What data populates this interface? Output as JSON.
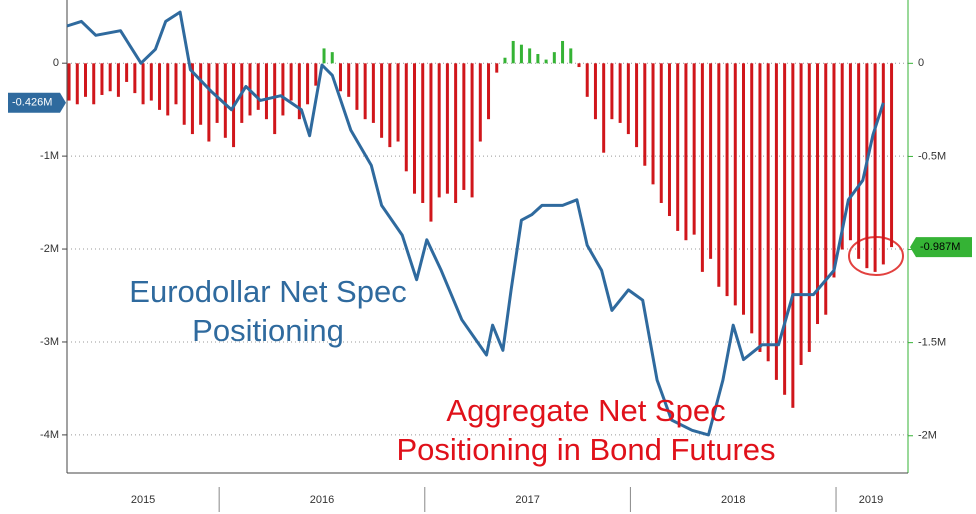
{
  "chart_data": {
    "type": "bar-line",
    "xlim": [
      2015.26,
      2019.35
    ],
    "xticks": [
      {
        "value": 2015.63,
        "label": "2015"
      },
      {
        "value": 2016.5,
        "label": "2016"
      },
      {
        "value": 2017.5,
        "label": "2017"
      },
      {
        "value": 2018.5,
        "label": "2018"
      },
      {
        "value": 2019.17,
        "label": "2019"
      }
    ],
    "ylim": [
      -4.41,
      0.68
    ],
    "yticks": [
      0,
      {
        "value": -1,
        "label": "-1M"
      },
      {
        "value": -2,
        "label": "-2M"
      },
      {
        "value": -3,
        "label": "-3M"
      },
      {
        "value": -4,
        "label": "-4M"
      }
    ],
    "y2lim": [
      -2.2,
      0.34
    ],
    "y2ticks": [
      0,
      {
        "value": -0.5,
        "label": "-0.5M"
      },
      {
        "value": -1,
        "label": "-1M"
      },
      {
        "value": -1.5,
        "label": "-1.5M"
      },
      {
        "value": -2,
        "label": "-2M"
      }
    ],
    "grid": true,
    "series": [
      {
        "name": "Eurodollar Net Spec Positioning",
        "type": "line",
        "axis": "y",
        "color": "#2f6a9e",
        "x": [
          2015.26,
          2015.33,
          2015.4,
          2015.52,
          2015.62,
          2015.69,
          2015.74,
          2015.81,
          2015.86,
          2015.96,
          2016.06,
          2016.13,
          2016.2,
          2016.3,
          2016.4,
          2016.44,
          2016.5,
          2016.55,
          2016.64,
          2016.74,
          2016.79,
          2016.89,
          2016.96,
          2017.01,
          2017.08,
          2017.18,
          2017.3,
          2017.33,
          2017.38,
          2017.42,
          2017.47,
          2017.52,
          2017.57,
          2017.67,
          2017.74,
          2017.79,
          2017.86,
          2017.91,
          2017.99,
          2018.06,
          2018.13,
          2018.2,
          2018.3,
          2018.38,
          2018.45,
          2018.5,
          2018.55,
          2018.64,
          2018.72,
          2018.79,
          2018.89,
          2018.99,
          2019.06,
          2019.13,
          2019.18,
          2019.23
        ],
        "values": [
          0.4,
          0.45,
          0.3,
          0.35,
          0,
          0.15,
          0.45,
          0.55,
          -0.07,
          -0.3,
          -0.5,
          -0.25,
          -0.4,
          -0.35,
          -0.5,
          -0.78,
          -0.02,
          -0.13,
          -0.72,
          -1.1,
          -1.53,
          -1.85,
          -2.33,
          -1.9,
          -2.23,
          -2.76,
          -3.14,
          -2.82,
          -3.09,
          -2.44,
          -1.69,
          -1.63,
          -1.53,
          -1.53,
          -1.47,
          -1.96,
          -2.23,
          -2.66,
          -2.44,
          -2.55,
          -3.41,
          -3.84,
          -3.95,
          -4.0,
          -3.41,
          -2.82,
          -3.19,
          -3.03,
          -3.03,
          -2.49,
          -2.49,
          -2.23,
          -1.47,
          -1.26,
          -0.77,
          -0.426
        ]
      },
      {
        "name": "Aggregate Net Spec Positioning in Bond Futures",
        "type": "bar",
        "axis": "y2",
        "color": "#d0161b",
        "positive_color": "#35b335",
        "x": [
          2015.27,
          2015.31,
          2015.35,
          2015.39,
          2015.43,
          2015.47,
          2015.51,
          2015.55,
          2015.59,
          2015.63,
          2015.67,
          2015.71,
          2015.75,
          2015.79,
          2015.83,
          2015.87,
          2015.91,
          2015.95,
          2015.99,
          2016.03,
          2016.07,
          2016.11,
          2016.15,
          2016.19,
          2016.23,
          2016.27,
          2016.31,
          2016.35,
          2016.39,
          2016.43,
          2016.47,
          2016.51,
          2016.55,
          2016.59,
          2016.63,
          2016.67,
          2016.71,
          2016.75,
          2016.79,
          2016.83,
          2016.87,
          2016.91,
          2016.95,
          2016.99,
          2017.03,
          2017.07,
          2017.11,
          2017.15,
          2017.19,
          2017.23,
          2017.27,
          2017.31,
          2017.35,
          2017.39,
          2017.43,
          2017.47,
          2017.51,
          2017.55,
          2017.59,
          2017.63,
          2017.67,
          2017.71,
          2017.75,
          2017.79,
          2017.83,
          2017.87,
          2017.91,
          2017.95,
          2017.99,
          2018.03,
          2018.07,
          2018.11,
          2018.15,
          2018.19,
          2018.23,
          2018.27,
          2018.31,
          2018.35,
          2018.39,
          2018.43,
          2018.47,
          2018.51,
          2018.55,
          2018.59,
          2018.63,
          2018.67,
          2018.71,
          2018.75,
          2018.79,
          2018.83,
          2018.87,
          2018.91,
          2018.95,
          2018.99,
          2019.03,
          2019.07,
          2019.11,
          2019.15,
          2019.19,
          2019.23,
          2019.27
        ],
        "values": [
          -0.2,
          -0.22,
          -0.18,
          -0.22,
          -0.17,
          -0.15,
          -0.18,
          -0.1,
          -0.16,
          -0.22,
          -0.2,
          -0.25,
          -0.28,
          -0.22,
          -0.33,
          -0.38,
          -0.33,
          -0.42,
          -0.32,
          -0.4,
          -0.45,
          -0.32,
          -0.28,
          -0.25,
          -0.3,
          -0.38,
          -0.28,
          -0.2,
          -0.3,
          -0.22,
          -0.12,
          0.08,
          0.06,
          -0.15,
          -0.18,
          -0.25,
          -0.3,
          -0.32,
          -0.4,
          -0.45,
          -0.42,
          -0.58,
          -0.7,
          -0.75,
          -0.85,
          -0.72,
          -0.7,
          -0.75,
          -0.68,
          -0.72,
          -0.42,
          -0.3,
          -0.05,
          0.03,
          0.12,
          0.1,
          0.08,
          0.05,
          0.02,
          0.06,
          0.12,
          0.08,
          -0.02,
          -0.18,
          -0.3,
          -0.48,
          -0.3,
          -0.32,
          -0.38,
          -0.45,
          -0.55,
          -0.65,
          -0.75,
          -0.82,
          -0.9,
          -0.95,
          -0.92,
          -1.12,
          -1.05,
          -1.2,
          -1.25,
          -1.3,
          -1.35,
          -1.45,
          -1.55,
          -1.6,
          -1.7,
          -1.78,
          -1.85,
          -1.62,
          -1.55,
          -1.4,
          -1.35,
          -1.15,
          -1.0,
          -0.95,
          -1.05,
          -1.1,
          -1.12,
          -1.08,
          -0.987
        ]
      }
    ],
    "annotations": [
      {
        "text": "-0.426M",
        "x": 2019.23,
        "y": -0.426,
        "axis": "y",
        "color": "#2f6a9e"
      },
      {
        "text": "-0.987M",
        "x": 2019.27,
        "y": -0.987,
        "axis": "y2",
        "color": "#35b335"
      }
    ],
    "labels": [
      {
        "lines": [
          "Eurodollar Net Spec",
          "Positioning"
        ],
        "color": "#2f6a9e"
      },
      {
        "lines": [
          "Aggregate Net Spec",
          "Positioning in Bond Futures"
        ],
        "color": "#e0111a"
      }
    ]
  }
}
